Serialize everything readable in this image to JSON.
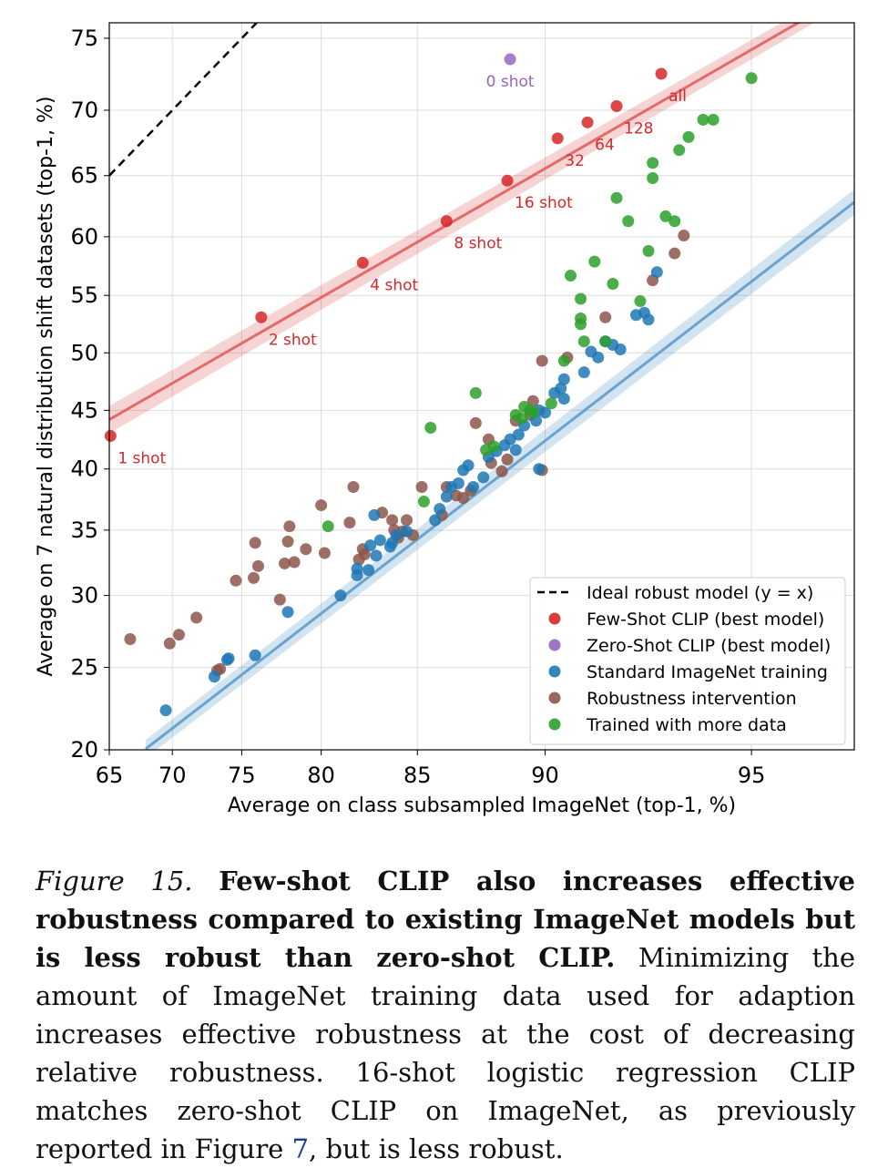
{
  "chart_data": {
    "type": "scatter",
    "xlabel": "Average on class subsampled ImageNet (top-1, %)",
    "ylabel": "Average on 7 natural distribution shift datasets (top-1, %)",
    "xlim": [
      65,
      96.5
    ],
    "ylim": [
      20,
      76
    ],
    "y_scale": "logit",
    "x_scale": "logit",
    "xticks": [
      65,
      70,
      75,
      80,
      85,
      90,
      95
    ],
    "yticks": [
      20,
      25,
      30,
      35,
      40,
      45,
      50,
      55,
      60,
      65,
      70,
      75
    ],
    "grid": true,
    "legend_position": "bottom-right",
    "colors": {
      "ideal": "#000000",
      "few_shot": "#d62728",
      "zero_shot": "#9467bd",
      "standard": "#1f77b4",
      "robustness": "#8c564b",
      "more_data": "#2ca02c"
    },
    "legend": [
      {
        "key": "ideal",
        "label": "Ideal robust model (y = x)",
        "kind": "dash"
      },
      {
        "key": "few_shot",
        "label": "Few-Shot CLIP (best model)",
        "kind": "dot"
      },
      {
        "key": "zero_shot",
        "label": "Zero-Shot CLIP (best model)",
        "kind": "dot"
      },
      {
        "key": "standard",
        "label": "Standard ImageNet training",
        "kind": "dot"
      },
      {
        "key": "robustness",
        "label": "Robustness intervention",
        "kind": "dot"
      },
      {
        "key": "more_data",
        "label": "Trained with more data",
        "kind": "dot"
      }
    ],
    "series": {
      "few_shot": {
        "name": "Few-Shot CLIP (best model)",
        "points": [
          {
            "x": 65.1,
            "y": 42.8,
            "label": "1 shot"
          },
          {
            "x": 76.3,
            "y": 53.1,
            "label": "2 shot"
          },
          {
            "x": 82.3,
            "y": 57.8,
            "label": "4 shot"
          },
          {
            "x": 86.3,
            "y": 61.3,
            "label": "8 shot"
          },
          {
            "x": 88.7,
            "y": 64.6,
            "label": "16 shot"
          },
          {
            "x": 90.4,
            "y": 67.9,
            "label": "32"
          },
          {
            "x": 91.3,
            "y": 69.1,
            "label": "64"
          },
          {
            "x": 92.1,
            "y": 70.3,
            "label": "128"
          },
          {
            "x": 93.2,
            "y": 72.6,
            "label": "all"
          }
        ],
        "fit": [
          [
            65,
            44.2
          ],
          [
            96.5,
            78.0
          ]
        ]
      },
      "zero_shot": {
        "name": "Zero-Shot CLIP (best model)",
        "points": [
          {
            "x": 88.8,
            "y": 73.6,
            "label": "0 shot"
          }
        ]
      },
      "standard": {
        "name": "Standard ImageNet training",
        "points": [
          [
            69.5,
            22.3
          ],
          [
            73.1,
            24.4
          ],
          [
            74.0,
            25.5
          ],
          [
            74.1,
            25.6
          ],
          [
            75.9,
            25.8
          ],
          [
            78.0,
            28.8
          ],
          [
            81.1,
            30.0
          ],
          [
            82.0,
            31.5
          ],
          [
            82.0,
            32.0
          ],
          [
            82.6,
            31.9
          ],
          [
            82.7,
            33.8
          ],
          [
            82.9,
            36.2
          ],
          [
            83.0,
            33.0
          ],
          [
            83.2,
            34.2
          ],
          [
            83.7,
            33.7
          ],
          [
            83.8,
            34.0
          ],
          [
            84.0,
            34.6
          ],
          [
            84.5,
            34.9
          ],
          [
            85.8,
            35.8
          ],
          [
            86.0,
            36.7
          ],
          [
            86.3,
            37.7
          ],
          [
            86.5,
            38.5
          ],
          [
            86.8,
            38.8
          ],
          [
            87.0,
            39.9
          ],
          [
            87.2,
            40.3
          ],
          [
            87.4,
            38.5
          ],
          [
            87.8,
            39.3
          ],
          [
            88.0,
            41.0
          ],
          [
            88.3,
            41.5
          ],
          [
            88.6,
            42.0
          ],
          [
            88.8,
            42.5
          ],
          [
            89.0,
            41.6
          ],
          [
            89.1,
            42.9
          ],
          [
            89.3,
            43.7
          ],
          [
            89.7,
            44.1
          ],
          [
            89.8,
            45.0
          ],
          [
            89.8,
            40.0
          ],
          [
            90.0,
            44.8
          ],
          [
            90.3,
            46.5
          ],
          [
            90.5,
            46.9
          ],
          [
            90.6,
            47.7
          ],
          [
            90.6,
            46.0
          ],
          [
            91.2,
            48.3
          ],
          [
            91.4,
            50.1
          ],
          [
            91.6,
            49.6
          ],
          [
            91.8,
            51.0
          ],
          [
            92.0,
            50.7
          ],
          [
            92.2,
            50.3
          ],
          [
            92.6,
            53.3
          ],
          [
            92.8,
            53.5
          ],
          [
            92.9,
            52.9
          ],
          [
            93.1,
            57.0
          ]
        ]
      },
      "robustness": {
        "name": "Robustness intervention",
        "points": [
          [
            66.7,
            26.9
          ],
          [
            69.8,
            26.6
          ],
          [
            70.5,
            27.2
          ],
          [
            71.8,
            28.4
          ],
          [
            73.3,
            24.8
          ],
          [
            73.5,
            24.9
          ],
          [
            74.6,
            31.1
          ],
          [
            75.8,
            31.3
          ],
          [
            75.9,
            34.0
          ],
          [
            76.1,
            32.2
          ],
          [
            77.5,
            29.7
          ],
          [
            77.8,
            32.4
          ],
          [
            78.0,
            34.1
          ],
          [
            78.1,
            35.3
          ],
          [
            78.4,
            32.5
          ],
          [
            79.1,
            33.5
          ],
          [
            80.0,
            37.0
          ],
          [
            80.2,
            33.2
          ],
          [
            81.6,
            35.6
          ],
          [
            81.8,
            38.5
          ],
          [
            82.1,
            32.7
          ],
          [
            82.3,
            33.5
          ],
          [
            82.4,
            33.1
          ],
          [
            83.3,
            36.4
          ],
          [
            83.8,
            35.8
          ],
          [
            83.9,
            35.0
          ],
          [
            84.1,
            34.4
          ],
          [
            84.3,
            34.9
          ],
          [
            84.5,
            35.8
          ],
          [
            84.8,
            34.6
          ],
          [
            85.2,
            38.5
          ],
          [
            86.1,
            36.2
          ],
          [
            86.3,
            38.5
          ],
          [
            86.7,
            37.8
          ],
          [
            87.0,
            37.6
          ],
          [
            87.3,
            38.2
          ],
          [
            87.5,
            43.9
          ],
          [
            88.0,
            42.5
          ],
          [
            88.1,
            40.5
          ],
          [
            88.5,
            39.8
          ],
          [
            88.7,
            40.8
          ],
          [
            89.0,
            44.1
          ],
          [
            89.5,
            44.6
          ],
          [
            89.6,
            45.8
          ],
          [
            89.9,
            49.3
          ],
          [
            89.9,
            39.9
          ],
          [
            90.7,
            49.6
          ],
          [
            91.8,
            53.1
          ],
          [
            93.0,
            56.3
          ],
          [
            93.5,
            58.6
          ],
          [
            93.7,
            60.1
          ]
        ]
      },
      "more_data": {
        "name": "Trained with more data",
        "points": [
          [
            80.4,
            35.3
          ],
          [
            85.3,
            37.3
          ],
          [
            85.6,
            43.5
          ],
          [
            87.5,
            46.5
          ],
          [
            87.9,
            41.6
          ],
          [
            88.2,
            41.9
          ],
          [
            89.0,
            44.6
          ],
          [
            89.2,
            44.3
          ],
          [
            89.3,
            45.3
          ],
          [
            89.5,
            45.0
          ],
          [
            89.6,
            44.8
          ],
          [
            90.2,
            45.6
          ],
          [
            90.6,
            49.3
          ],
          [
            90.8,
            56.7
          ],
          [
            91.1,
            54.7
          ],
          [
            91.1,
            53.0
          ],
          [
            91.1,
            52.5
          ],
          [
            91.2,
            51.0
          ],
          [
            91.5,
            57.9
          ],
          [
            91.8,
            51.0
          ],
          [
            92.0,
            56.0
          ],
          [
            92.1,
            63.2
          ],
          [
            92.4,
            61.3
          ],
          [
            92.7,
            54.5
          ],
          [
            92.9,
            58.8
          ],
          [
            93.0,
            66.0
          ],
          [
            93.0,
            64.8
          ],
          [
            93.3,
            61.7
          ],
          [
            93.5,
            61.3
          ],
          [
            93.6,
            67.0
          ],
          [
            93.8,
            68.0
          ],
          [
            94.1,
            69.3
          ],
          [
            94.3,
            69.3
          ],
          [
            95.0,
            72.3
          ]
        ]
      }
    }
  },
  "caption": {
    "fig_label": "Figure 15.",
    "bold_text": "Few-shot CLIP also increases effective robustness compared to existing ImageNet models but is less robust than zero-shot CLIP.",
    "body_text": "Minimizing the amount of ImageNet training data used for adaption increases effective robustness at the cost of decreasing relative robustness. 16-shot logistic regression CLIP matches zero-shot CLIP on ImageNet, as previously reported in Figure",
    "ref": "7",
    "tail": ", but is less robust."
  }
}
